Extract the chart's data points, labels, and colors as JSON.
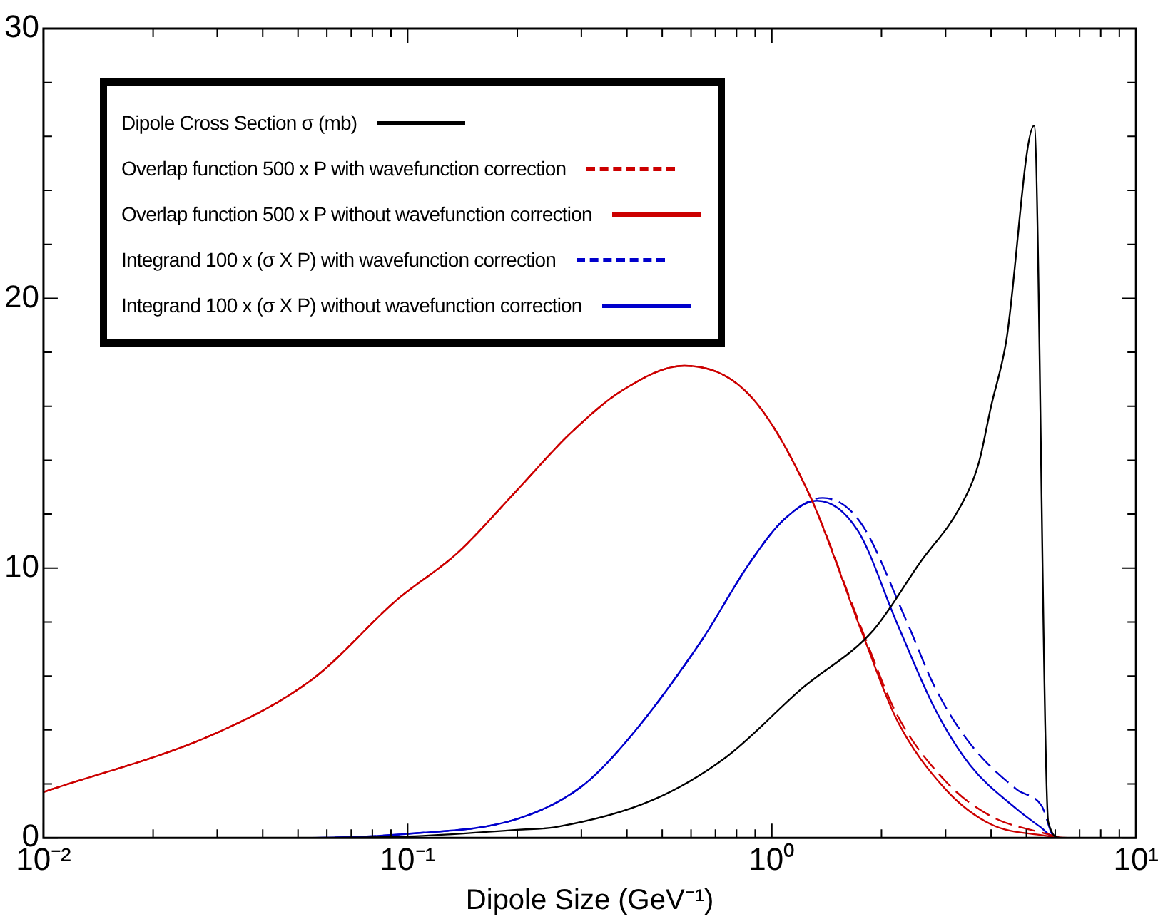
{
  "chart_data": {
    "type": "line",
    "xlabel": "Dipole Size (GeV⁻¹)",
    "log": "x",
    "grid": false,
    "legend": "top left",
    "marker": "none",
    "xlim": [
      0.01,
      10
    ],
    "ylim": [
      0,
      30
    ],
    "xticks": [
      {
        "value": 0.01,
        "label": "10⁻²"
      },
      {
        "value": 0.02,
        "label": null
      },
      {
        "value": 0.03,
        "label": null
      },
      {
        "value": 0.04,
        "label": null
      },
      {
        "value": 0.05,
        "label": null
      },
      {
        "value": 0.06,
        "label": null
      },
      {
        "value": 0.07,
        "label": null
      },
      {
        "value": 0.08,
        "label": null
      },
      {
        "value": 0.09,
        "label": null
      },
      {
        "value": 0.1,
        "label": "10⁻¹"
      },
      {
        "value": 0.2,
        "label": null
      },
      {
        "value": 0.3,
        "label": null
      },
      {
        "value": 0.4,
        "label": null
      },
      {
        "value": 0.5,
        "label": null
      },
      {
        "value": 0.6,
        "label": null
      },
      {
        "value": 0.7,
        "label": null
      },
      {
        "value": 0.8,
        "label": null
      },
      {
        "value": 0.9,
        "label": null
      },
      {
        "value": 1,
        "label": "10⁰"
      },
      {
        "value": 2,
        "label": null
      },
      {
        "value": 3,
        "label": null
      },
      {
        "value": 4,
        "label": null
      },
      {
        "value": 5,
        "label": null
      },
      {
        "value": 6,
        "label": null
      },
      {
        "value": 7,
        "label": null
      },
      {
        "value": 8,
        "label": null
      },
      {
        "value": 9,
        "label": null
      },
      {
        "value": 10,
        "label": "10¹"
      }
    ],
    "yticks": [
      0,
      {
        "value": 2,
        "label": null
      },
      {
        "value": 4,
        "label": null
      },
      {
        "value": 6,
        "label": null
      },
      {
        "value": 8,
        "label": null
      },
      10,
      {
        "value": 12,
        "label": null
      },
      {
        "value": 14,
        "label": null
      },
      {
        "value": 16,
        "label": null
      },
      {
        "value": 18,
        "label": null
      },
      20,
      {
        "value": 22,
        "label": null
      },
      {
        "value": 24,
        "label": null
      },
      {
        "value": 26,
        "label": null
      },
      {
        "value": 28,
        "label": null
      },
      30
    ],
    "series": [
      {
        "name": "Dipole Cross Section σ  (mb)",
        "color": "#000000",
        "line_style": "solid",
        "x": [
          0.01,
          0.05,
          0.1,
          0.2,
          0.255,
          0.47,
          0.75,
          1.2,
          1.9,
          2.55,
          3.3,
          3.7,
          4.0,
          4.4,
          5.25,
          5.74,
          6.2,
          10
        ],
        "values": [
          0,
          0,
          0.05,
          0.3,
          0.4,
          1.4,
          3.0,
          5.5,
          7.7,
          10.2,
          12.3,
          13.9,
          16.0,
          18.4,
          26.4,
          0.6,
          0,
          0
        ]
      },
      {
        "name": "Overlap function 500 x P with wavefunction correction",
        "color": "#cc0000",
        "line_style": "dashed",
        "x": [
          0.01,
          0.03,
          0.055,
          0.093,
          0.138,
          0.2,
          0.28,
          0.39,
          0.575,
          0.87,
          1.26,
          1.77,
          2.2,
          3.0,
          4.0,
          5.5,
          6.5,
          10
        ],
        "values": [
          1.7,
          3.9,
          5.9,
          8.8,
          10.6,
          12.9,
          15.0,
          16.6,
          17.5,
          16.4,
          12.8,
          7.7,
          4.6,
          2.1,
          0.8,
          0.2,
          0,
          0
        ]
      },
      {
        "name": "Overlap function 500 x P without wavefunction correction",
        "color": "#cc0000",
        "line_style": "solid",
        "x": [
          0.01,
          0.03,
          0.055,
          0.093,
          0.138,
          0.2,
          0.28,
          0.39,
          0.575,
          0.87,
          1.26,
          1.77,
          2.2,
          3.0,
          4.0,
          5.5,
          6.5,
          10
        ],
        "values": [
          1.7,
          3.9,
          5.9,
          8.8,
          10.6,
          12.9,
          15.0,
          16.6,
          17.5,
          16.4,
          12.8,
          7.6,
          4.4,
          1.8,
          0.5,
          0.1,
          0,
          0
        ]
      },
      {
        "name": "Integrand 100 x (σ X P) with wavefunction correction",
        "color": "#0000cc",
        "line_style": "dashed",
        "x": [
          0.01,
          0.05,
          0.1,
          0.2,
          0.3,
          0.4,
          0.64,
          0.87,
          1.08,
          1.38,
          1.75,
          2.35,
          2.8,
          3.5,
          4.7,
          5.5,
          6.0,
          10
        ],
        "values": [
          0,
          0,
          0.15,
          0.7,
          1.9,
          3.6,
          7.3,
          10.2,
          11.8,
          12.6,
          11.7,
          8.0,
          5.6,
          3.5,
          1.8,
          1.2,
          0,
          0
        ]
      },
      {
        "name": "Integrand 100 x (σ X P) without wavefunction correction",
        "color": "#0000cc",
        "line_style": "solid",
        "x": [
          0.01,
          0.05,
          0.1,
          0.2,
          0.3,
          0.4,
          0.64,
          0.87,
          1.08,
          1.33,
          1.72,
          2.2,
          2.8,
          3.5,
          4.7,
          5.5,
          6.0,
          10
        ],
        "values": [
          0,
          0,
          0.15,
          0.7,
          1.9,
          3.6,
          7.3,
          10.2,
          11.8,
          12.5,
          11.4,
          8.0,
          4.8,
          2.7,
          1.07,
          0.37,
          0,
          0
        ]
      }
    ]
  }
}
